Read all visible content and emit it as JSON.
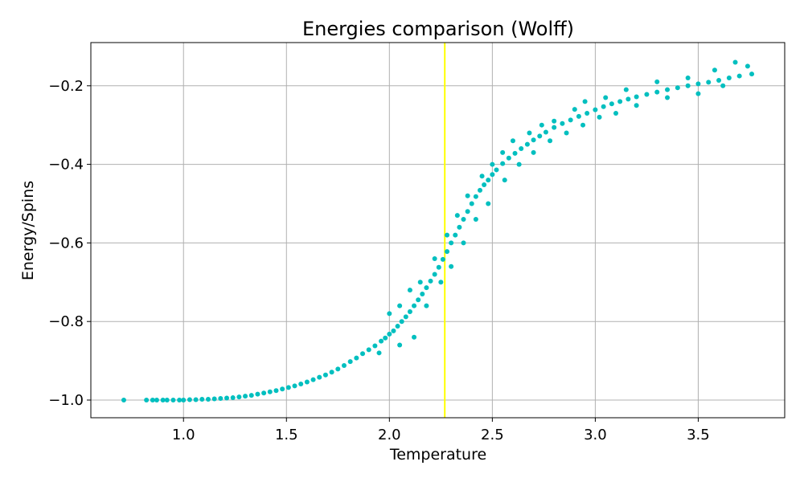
{
  "chart_data": {
    "type": "scatter",
    "title": "Energies comparison (Wolff)",
    "xlabel": "Temperature",
    "ylabel": "Energy/Spins",
    "xlim": [
      0.55,
      3.92
    ],
    "ylim": [
      -1.045,
      -0.09
    ],
    "xticks": [
      1.0,
      1.5,
      2.0,
      2.5,
      3.0,
      3.5
    ],
    "xtick_labels": [
      "1.0",
      "1.5",
      "2.0",
      "2.5",
      "3.0",
      "3.5"
    ],
    "yticks": [
      -1.0,
      -0.8,
      -0.6,
      -0.4,
      -0.2
    ],
    "ytick_labels": [
      "−1.0",
      "−0.8",
      "−0.6",
      "−0.4",
      "−0.2"
    ],
    "grid": true,
    "point_color": "#00bfbf",
    "vline": {
      "x": 2.269,
      "color": "#ffff00"
    },
    "points": [
      [
        0.71,
        -1.0
      ],
      [
        0.82,
        -1.0
      ],
      [
        0.85,
        -1.0
      ],
      [
        0.87,
        -1.0
      ],
      [
        0.9,
        -1.0
      ],
      [
        0.92,
        -1.0
      ],
      [
        0.95,
        -1.0
      ],
      [
        0.98,
        -1.0
      ],
      [
        1.0,
        -1.0
      ],
      [
        1.03,
        -0.999
      ],
      [
        1.06,
        -0.999
      ],
      [
        1.09,
        -0.998
      ],
      [
        1.12,
        -0.998
      ],
      [
        1.15,
        -0.997
      ],
      [
        1.18,
        -0.996
      ],
      [
        1.21,
        -0.995
      ],
      [
        1.24,
        -0.994
      ],
      [
        1.27,
        -0.992
      ],
      [
        1.3,
        -0.99
      ],
      [
        1.33,
        -0.988
      ],
      [
        1.36,
        -0.985
      ],
      [
        1.39,
        -0.982
      ],
      [
        1.42,
        -0.979
      ],
      [
        1.45,
        -0.976
      ],
      [
        1.48,
        -0.972
      ],
      [
        1.51,
        -0.968
      ],
      [
        1.54,
        -0.964
      ],
      [
        1.57,
        -0.959
      ],
      [
        1.6,
        -0.954
      ],
      [
        1.63,
        -0.948
      ],
      [
        1.66,
        -0.942
      ],
      [
        1.69,
        -0.936
      ],
      [
        1.72,
        -0.929
      ],
      [
        1.75,
        -0.921
      ],
      [
        1.78,
        -0.912
      ],
      [
        1.81,
        -0.902
      ],
      [
        1.84,
        -0.893
      ],
      [
        1.87,
        -0.882
      ],
      [
        1.9,
        -0.872
      ],
      [
        1.93,
        -0.862
      ],
      [
        1.96,
        -0.85
      ],
      [
        1.98,
        -0.842
      ],
      [
        2.0,
        -0.832
      ],
      [
        2.02,
        -0.824
      ],
      [
        2.04,
        -0.812
      ],
      [
        2.06,
        -0.8
      ],
      [
        2.08,
        -0.788
      ],
      [
        2.1,
        -0.775
      ],
      [
        2.12,
        -0.76
      ],
      [
        2.14,
        -0.745
      ],
      [
        2.16,
        -0.73
      ],
      [
        2.18,
        -0.714
      ],
      [
        2.2,
        -0.697
      ],
      [
        2.22,
        -0.68
      ],
      [
        2.24,
        -0.662
      ],
      [
        2.26,
        -0.642
      ],
      [
        2.28,
        -0.622
      ],
      [
        2.3,
        -0.6
      ],
      [
        2.32,
        -0.58
      ],
      [
        2.34,
        -0.56
      ],
      [
        2.36,
        -0.54
      ],
      [
        2.38,
        -0.52
      ],
      [
        2.4,
        -0.5
      ],
      [
        2.42,
        -0.482
      ],
      [
        2.44,
        -0.466
      ],
      [
        2.46,
        -0.452
      ],
      [
        2.48,
        -0.44
      ],
      [
        2.5,
        -0.426
      ],
      [
        2.52,
        -0.414
      ],
      [
        2.55,
        -0.398
      ],
      [
        2.58,
        -0.384
      ],
      [
        2.61,
        -0.372
      ],
      [
        2.64,
        -0.36
      ],
      [
        2.67,
        -0.349
      ],
      [
        2.7,
        -0.338
      ],
      [
        2.73,
        -0.328
      ],
      [
        2.76,
        -0.318
      ],
      [
        2.8,
        -0.306
      ],
      [
        2.84,
        -0.296
      ],
      [
        2.88,
        -0.287
      ],
      [
        2.92,
        -0.278
      ],
      [
        2.96,
        -0.27
      ],
      [
        3.0,
        -0.261
      ],
      [
        3.04,
        -0.253
      ],
      [
        3.08,
        -0.246
      ],
      [
        3.12,
        -0.24
      ],
      [
        3.16,
        -0.234
      ],
      [
        3.2,
        -0.228
      ],
      [
        3.25,
        -0.222
      ],
      [
        3.3,
        -0.216
      ],
      [
        3.35,
        -0.21
      ],
      [
        3.4,
        -0.205
      ],
      [
        3.45,
        -0.2
      ],
      [
        3.5,
        -0.195
      ],
      [
        3.55,
        -0.191
      ],
      [
        3.6,
        -0.186
      ],
      [
        3.65,
        -0.18
      ],
      [
        3.7,
        -0.175
      ],
      [
        3.76,
        -0.17
      ],
      [
        2.0,
        -0.78
      ],
      [
        2.05,
        -0.76
      ],
      [
        2.1,
        -0.72
      ],
      [
        2.15,
        -0.7
      ],
      [
        2.22,
        -0.64
      ],
      [
        2.28,
        -0.58
      ],
      [
        2.33,
        -0.53
      ],
      [
        2.38,
        -0.48
      ],
      [
        2.45,
        -0.43
      ],
      [
        2.5,
        -0.4
      ],
      [
        2.55,
        -0.37
      ],
      [
        2.6,
        -0.34
      ],
      [
        2.68,
        -0.32
      ],
      [
        2.74,
        -0.3
      ],
      [
        2.8,
        -0.29
      ],
      [
        2.9,
        -0.26
      ],
      [
        2.95,
        -0.24
      ],
      [
        3.05,
        -0.23
      ],
      [
        3.15,
        -0.21
      ],
      [
        3.3,
        -0.19
      ],
      [
        3.45,
        -0.18
      ],
      [
        3.58,
        -0.16
      ],
      [
        3.68,
        -0.14
      ],
      [
        3.74,
        -0.15
      ],
      [
        1.95,
        -0.88
      ],
      [
        2.05,
        -0.86
      ],
      [
        2.12,
        -0.84
      ],
      [
        2.18,
        -0.76
      ],
      [
        2.25,
        -0.7
      ],
      [
        2.3,
        -0.66
      ],
      [
        2.36,
        -0.6
      ],
      [
        2.42,
        -0.54
      ],
      [
        2.48,
        -0.5
      ],
      [
        2.56,
        -0.44
      ],
      [
        2.63,
        -0.4
      ],
      [
        2.7,
        -0.37
      ],
      [
        2.78,
        -0.34
      ],
      [
        2.86,
        -0.32
      ],
      [
        2.94,
        -0.3
      ],
      [
        3.02,
        -0.28
      ],
      [
        3.1,
        -0.27
      ],
      [
        3.2,
        -0.25
      ],
      [
        3.35,
        -0.23
      ],
      [
        3.5,
        -0.22
      ],
      [
        3.62,
        -0.2
      ]
    ]
  }
}
